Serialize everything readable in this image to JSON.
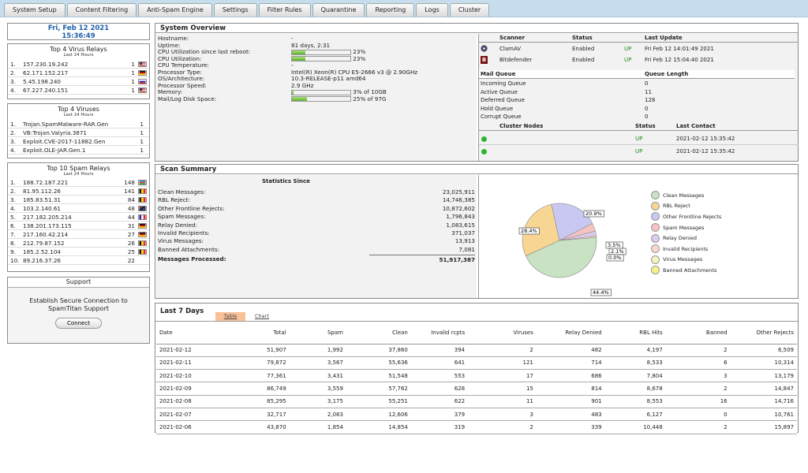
{
  "tabs": [
    "System Setup",
    "Content Filtering",
    "Anti-Spam Engine",
    "Settings",
    "Filter Rules",
    "Quarantine",
    "Reporting",
    "Logs",
    "Cluster"
  ],
  "clock": {
    "date": "Fri, Feb 12 2021",
    "time": "15:36:49"
  },
  "virus_relays": {
    "title": "Top 4 Virus Relays",
    "sub": "Last 24 Hours",
    "rows": [
      {
        "n": "1.",
        "ip": "157.230.19.242",
        "c": "1",
        "flag": "us"
      },
      {
        "n": "2.",
        "ip": "62.171.152.217",
        "c": "1",
        "flag": "de"
      },
      {
        "n": "3.",
        "ip": "5.45.198.240",
        "c": "1",
        "flag": "ru"
      },
      {
        "n": "4.",
        "ip": "67.227.240.151",
        "c": "1",
        "flag": "us"
      }
    ]
  },
  "viruses": {
    "title": "Top 4 Viruses",
    "sub": "Last 24 Hours",
    "rows": [
      {
        "n": "1.",
        "name": "Trojan.SpamMalware-RAR.Gen",
        "c": "1"
      },
      {
        "n": "2.",
        "name": "VB:Trojan.Valyria.3871",
        "c": "1"
      },
      {
        "n": "3.",
        "name": "Exploit.CVE-2017-11882.Gen",
        "c": "1"
      },
      {
        "n": "4.",
        "name": "Exploit.OLE-JAR.Gen.1",
        "c": "1"
      }
    ]
  },
  "spam_relays": {
    "title": "Top 10 Spam Relays",
    "sub": "Last 24 Hours",
    "rows": [
      {
        "n": "1.",
        "ip": "188.72.187.221",
        "c": "148",
        "flag": "az"
      },
      {
        "n": "2.",
        "ip": "81.95.112.26",
        "c": "141",
        "flag": "be"
      },
      {
        "n": "3.",
        "ip": "185.83.51.31",
        "c": "84",
        "flag": "be"
      },
      {
        "n": "4.",
        "ip": "103.2.140.61",
        "c": "48",
        "flag": "au"
      },
      {
        "n": "5.",
        "ip": "217.182.205.214",
        "c": "44",
        "flag": "fr"
      },
      {
        "n": "6.",
        "ip": "138.201.173.115",
        "c": "31",
        "flag": "de"
      },
      {
        "n": "7.",
        "ip": "217.160.42.214",
        "c": "27",
        "flag": "de"
      },
      {
        "n": "8.",
        "ip": "212.79.87.152",
        "c": "26",
        "flag": "be"
      },
      {
        "n": "9.",
        "ip": "185.2.52.104",
        "c": "25",
        "flag": "be"
      },
      {
        "n": "10.",
        "ip": "89.216.37.26",
        "c": "22",
        "flag": ""
      }
    ]
  },
  "support": {
    "title": "Support",
    "text": "Establish Secure Connection to SpamTitan Support",
    "button": "Connect"
  },
  "overview": {
    "title": "System Overview",
    "rows": [
      {
        "k": "Hostname:",
        "v": "-",
        "bar": null
      },
      {
        "k": "Uptime:",
        "v": "81 days, 2:31",
        "bar": null
      },
      {
        "k": "CPU Utilization since last reboot:",
        "v": "23%",
        "bar": 0.23
      },
      {
        "k": "CPU Utilization:",
        "v": "23%",
        "bar": 0.23
      },
      {
        "k": "CPU Temperature:",
        "v": "-",
        "bar": null
      },
      {
        "k": "Processor Type:",
        "v": "Intel(R) Xeon(R) CPU E5-2666 v3 @ 2.90GHz",
        "bar": null
      },
      {
        "k": "OS/Architecture:",
        "v": "10.3-RELEASE-p11 amd64",
        "bar": null
      },
      {
        "k": "Processor Speed:",
        "v": "2.9 GHz",
        "bar": null
      },
      {
        "k": "Memory:",
        "v": "3% of 10GB",
        "bar": 0.03
      },
      {
        "k": "Mail/Log Disk Space:",
        "v": "25% of 97G",
        "bar": 0.25
      }
    ]
  },
  "scanners": {
    "headers": [
      "Scanner",
      "Status",
      "Last Update"
    ],
    "rows": [
      {
        "name": "ClamAV",
        "status": "Enabled",
        "state": "UP",
        "update": "Fri Feb 12 14:01:49 2021"
      },
      {
        "name": "Bitdefender",
        "status": "Enabled",
        "state": "UP",
        "update": "Fri Feb 12 15:04:40 2021"
      }
    ]
  },
  "queue": {
    "headers": [
      "Mail Queue",
      "Queue Length"
    ],
    "rows": [
      {
        "k": "Incoming Queue",
        "v": "0"
      },
      {
        "k": "Active Queue",
        "v": "11"
      },
      {
        "k": "Deferred Queue",
        "v": "128"
      },
      {
        "k": "Hold Queue",
        "v": "0"
      },
      {
        "k": "Corrupt Queue",
        "v": "0"
      }
    ]
  },
  "cluster": {
    "headers": [
      "Cluster Nodes",
      "Status",
      "Last Contact"
    ],
    "rows": [
      {
        "state": "UP",
        "contact": "2021-02-12 15:35:42"
      },
      {
        "state": "UP",
        "contact": "2021-02-12 15:35:42"
      }
    ]
  },
  "scan": {
    "title": "Scan Summary",
    "stats_title": "Statistics Since",
    "rows": [
      {
        "k": "Clean Messages:",
        "v": "23,025,911"
      },
      {
        "k": "RBL Reject:",
        "v": "14,746,385"
      },
      {
        "k": "Other Frontline Rejects:",
        "v": "10,872,602"
      },
      {
        "k": "Spam Messages:",
        "v": "1,796,843"
      },
      {
        "k": "Relay Denied:",
        "v": "1,083,615"
      },
      {
        "k": "Invalid Recipients:",
        "v": "371,037"
      },
      {
        "k": "Virus Messages:",
        "v": "13,913"
      },
      {
        "k": "Banned Attachments:",
        "v": "7,081"
      }
    ],
    "total": {
      "k": "Messages Processed:",
      "v": "51,917,387"
    }
  },
  "chart_data": {
    "type": "pie",
    "slices": [
      {
        "name": "Clean Messages",
        "value": 44.4,
        "label": "44.4%",
        "color": "#c8e2c3"
      },
      {
        "name": "RBL Reject",
        "value": 28.4,
        "label": "28.4%",
        "color": "#f7d694"
      },
      {
        "name": "Other Frontline Rejects",
        "value": 20.9,
        "label": "20.9%",
        "color": "#c9c8f2"
      },
      {
        "name": "Spam Messages",
        "value": 3.5,
        "label": "3.5%",
        "color": "#f6c3c3"
      },
      {
        "name": "Relay Denied",
        "value": 2.1,
        "label": "2.1%",
        "color": "#dccbec"
      },
      {
        "name": "Invalid Recipients",
        "value": 0.7,
        "label": "",
        "color": "#f7d8cf"
      },
      {
        "name": "Virus Messages",
        "value": 0.0,
        "label": "0.0%",
        "color": "#f4f4c0"
      },
      {
        "name": "Banned Attachments",
        "value": 0.0,
        "label": "",
        "color": "#f6f28a"
      }
    ]
  },
  "last7": {
    "title": "Last 7 Days",
    "tab_table": "Table",
    "tab_chart": "Chart",
    "headers": [
      "Date",
      "Total",
      "Spam",
      "Clean",
      "Invalid rcpts",
      "Viruses",
      "Relay Denied",
      "RBL Hits",
      "Banned",
      "Other Rejects"
    ],
    "rows": [
      [
        "2021-02-12",
        "51,907",
        "1,992",
        "37,860",
        "394",
        "2",
        "482",
        "4,197",
        "2",
        "6,509"
      ],
      [
        "2021-02-11",
        "79,872",
        "3,567",
        "55,636",
        "641",
        "121",
        "714",
        "8,533",
        "6",
        "10,314"
      ],
      [
        "2021-02-10",
        "77,361",
        "3,431",
        "51,548",
        "553",
        "17",
        "686",
        "7,804",
        "3",
        "13,179"
      ],
      [
        "2021-02-09",
        "86,749",
        "3,559",
        "57,762",
        "628",
        "15",
        "814",
        "8,678",
        "2",
        "14,847"
      ],
      [
        "2021-02-08",
        "85,295",
        "3,175",
        "55,251",
        "622",
        "11",
        "901",
        "8,553",
        "16",
        "14,716"
      ],
      [
        "2021-02-07",
        "32,717",
        "2,083",
        "12,606",
        "379",
        "3",
        "483",
        "6,127",
        "0",
        "10,761"
      ],
      [
        "2021-02-06",
        "43,870",
        "1,854",
        "14,854",
        "319",
        "2",
        "339",
        "10,448",
        "2",
        "15,897"
      ]
    ]
  }
}
